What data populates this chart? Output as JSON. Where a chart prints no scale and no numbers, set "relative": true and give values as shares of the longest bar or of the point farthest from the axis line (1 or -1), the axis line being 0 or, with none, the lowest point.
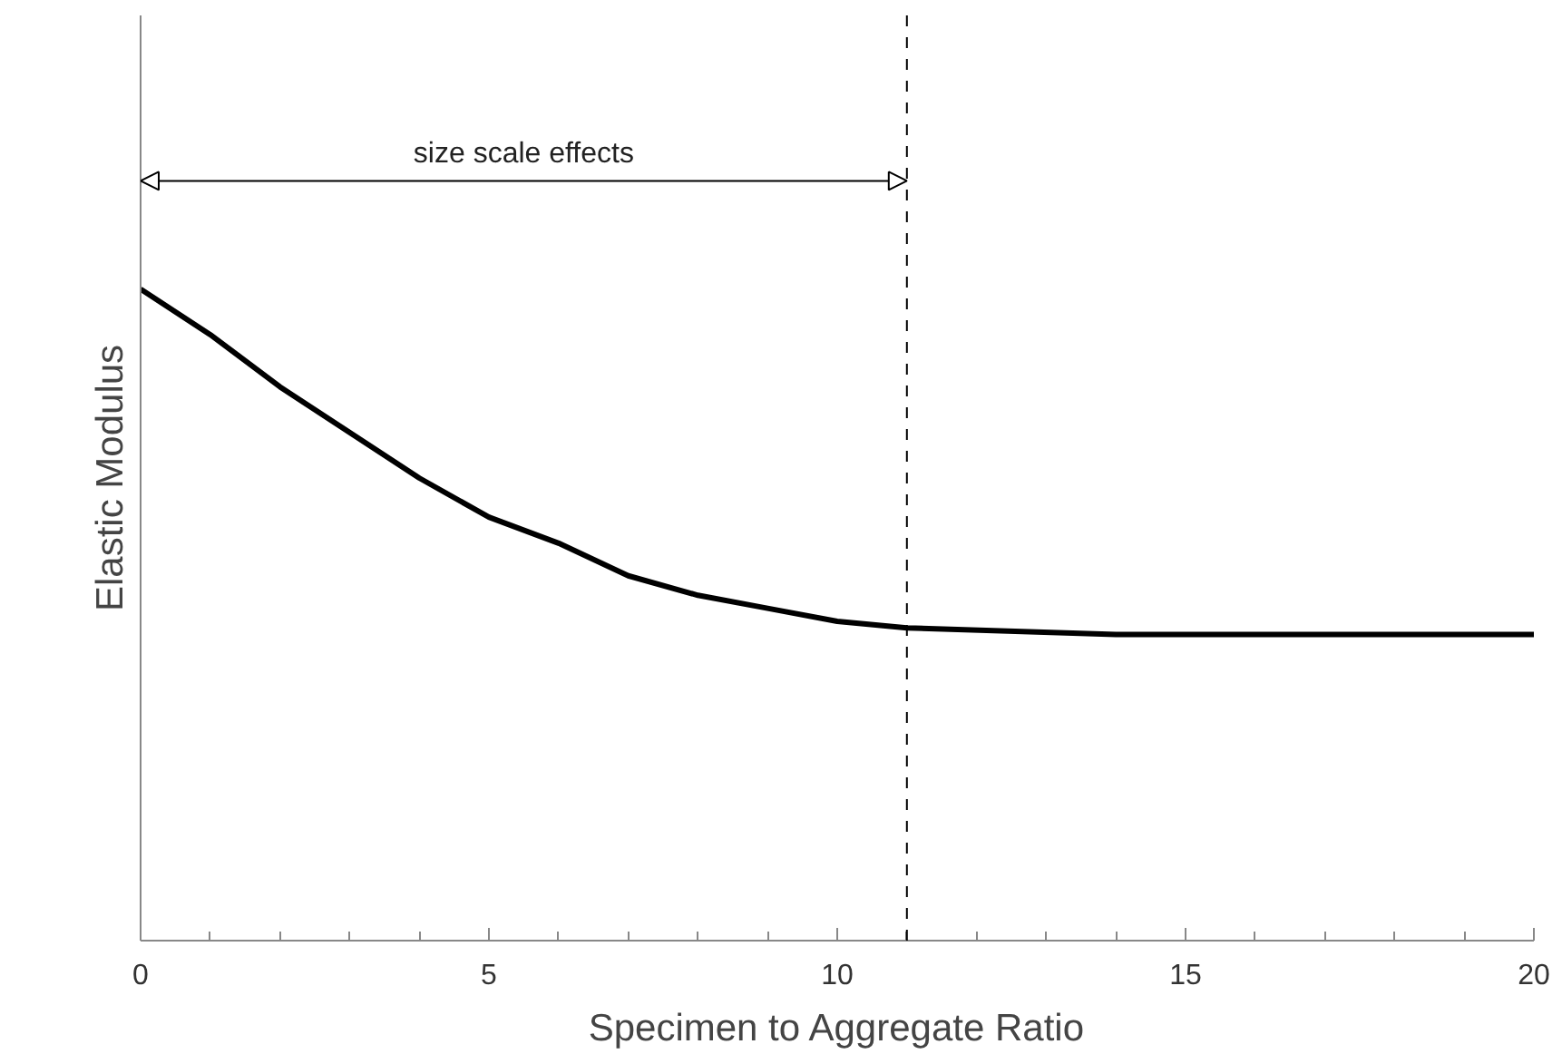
{
  "chart_data": {
    "type": "line",
    "relative": true,
    "xlabel": "Specimen to Aggregate Ratio",
    "ylabel": "Elastic Modulus",
    "x": [
      0,
      1,
      2,
      3,
      4,
      5,
      6,
      7,
      8,
      9,
      10,
      11,
      14,
      20
    ],
    "series": [
      {
        "color": "#000000",
        "values": [
          1.0,
          0.93,
          0.85,
          0.78,
          0.71,
          0.65,
          0.61,
          0.56,
          0.53,
          0.51,
          0.49,
          0.48,
          0.47,
          0.47
        ]
      }
    ],
    "xlim": [
      0,
      20
    ],
    "xticks": [
      0,
      5,
      10,
      15,
      20
    ],
    "ref_lines": [
      {
        "axis": "x",
        "value": 11,
        "color": "#000000",
        "line_style": "dashed"
      }
    ],
    "annotations": [
      "size scale effects"
    ],
    "tick_labels": "x",
    "grid": false,
    "marker": "none",
    "line_style": "solid"
  }
}
